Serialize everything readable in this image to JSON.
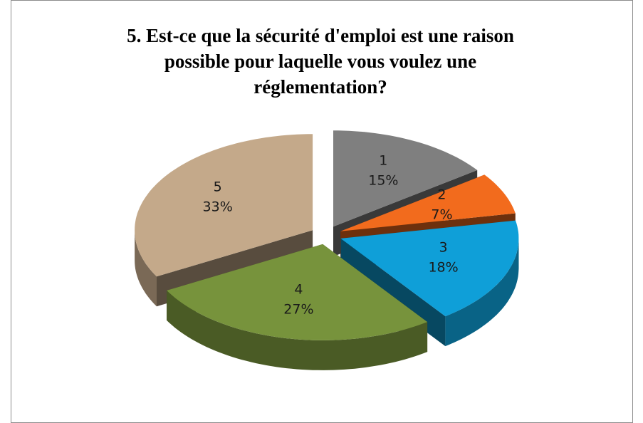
{
  "chart_data": {
    "type": "pie",
    "title": "5. Est-ce que la sécurité d'emploi est une raison possible pour laquelle vous voulez une réglementation?",
    "categories": [
      "1",
      "2",
      "3",
      "4",
      "5"
    ],
    "values": [
      15,
      7,
      18,
      27,
      33
    ],
    "value_labels": [
      "15%",
      "7%",
      "18%",
      "27%",
      "33%"
    ],
    "colors": [
      "#7f7f7f",
      "#f26b1d",
      "#0f9fd8",
      "#77933c",
      "#c4a98a"
    ]
  }
}
